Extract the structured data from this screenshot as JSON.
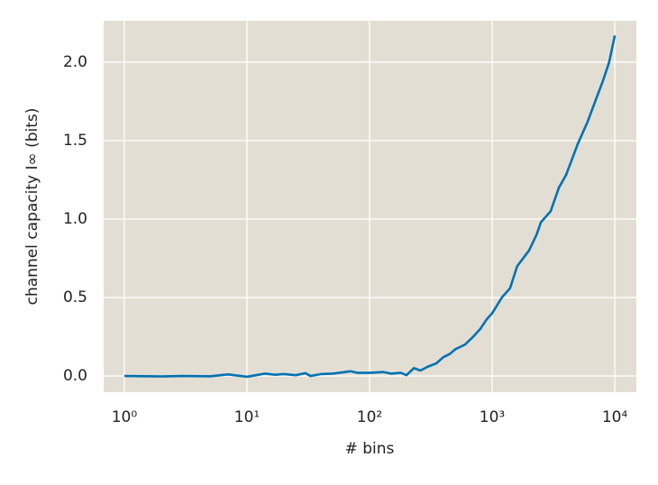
{
  "chart_data": {
    "type": "line",
    "xlabel": "# bins",
    "ylabel": "channel capacity I∞ (bits)",
    "xscale": "log",
    "grid": true,
    "background": "#e3ded3",
    "x": [
      1,
      2,
      3,
      5,
      7,
      10,
      14,
      17,
      20,
      25,
      30,
      33,
      40,
      50,
      70,
      80,
      100,
      130,
      150,
      180,
      200,
      230,
      260,
      300,
      350,
      400,
      450,
      500,
      600,
      700,
      800,
      900,
      1000,
      1200,
      1400,
      1600,
      2000,
      2300,
      2500,
      3000,
      3500,
      4000,
      5000,
      6000,
      7000,
      8000,
      9000,
      10000
    ],
    "series": [
      {
        "color": "#0072b2",
        "values": [
          0.0,
          -0.003,
          0.0,
          -0.002,
          0.01,
          -0.005,
          0.015,
          0.008,
          0.012,
          0.005,
          0.018,
          0.0,
          0.012,
          0.015,
          0.03,
          0.02,
          0.02,
          0.025,
          0.015,
          0.02,
          0.005,
          0.05,
          0.035,
          0.06,
          0.08,
          0.12,
          0.14,
          0.17,
          0.2,
          0.25,
          0.3,
          0.36,
          0.4,
          0.5,
          0.56,
          0.7,
          0.8,
          0.9,
          0.98,
          1.05,
          1.2,
          1.28,
          1.48,
          1.62,
          1.76,
          1.88,
          2.0,
          2.17
        ]
      }
    ],
    "xlim": [
      0.678,
      15000
    ],
    "ylim": [
      -0.103,
      2.264
    ],
    "xticks": [
      {
        "value": 1,
        "label": "10⁰"
      },
      {
        "value": 10,
        "label": "10¹"
      },
      {
        "value": 100,
        "label": "10²"
      },
      {
        "value": 1000,
        "label": "10³"
      },
      {
        "value": 10000,
        "label": "10⁴"
      }
    ],
    "yticks": [
      {
        "value": 0,
        "label": "0.0"
      },
      0.5,
      {
        "value": 1,
        "label": "1.0"
      },
      1.5,
      {
        "value": 2,
        "label": "2.0"
      }
    ]
  }
}
